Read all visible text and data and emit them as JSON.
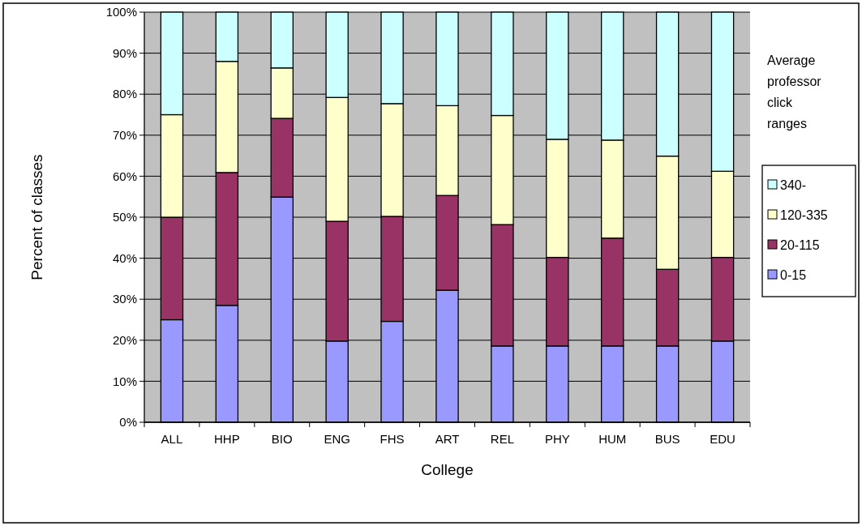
{
  "chart_data": {
    "type": "bar",
    "stacked": true,
    "xlabel": "College",
    "ylabel": "Percent of classes",
    "legend_title": "Average professor click ranges",
    "legend": "right",
    "grid": "y",
    "categories": [
      "ALL",
      "HHP",
      "BIO",
      "ENG",
      "FHS",
      "ART",
      "REL",
      "PHY",
      "HUM",
      "BUS",
      "EDU"
    ],
    "ylim": [
      0,
      100
    ],
    "yticks": [
      {
        "value": 0,
        "label": "0%"
      },
      {
        "value": 10,
        "label": "10%"
      },
      {
        "value": 20,
        "label": "20%"
      },
      {
        "value": 30,
        "label": "30%"
      },
      {
        "value": 40,
        "label": "40%"
      },
      {
        "value": 50,
        "label": "50%"
      },
      {
        "value": 60,
        "label": "60%"
      },
      {
        "value": 70,
        "label": "70%"
      },
      {
        "value": 80,
        "label": "80%"
      },
      {
        "value": 90,
        "label": "90%"
      },
      {
        "value": 100,
        "label": "100%"
      }
    ],
    "series": [
      {
        "name": "0-15",
        "color": "#9999ff",
        "values": [
          25,
          28.5,
          54.9,
          19.8,
          24.6,
          32.2,
          18.6,
          18.6,
          18.6,
          18.6,
          19.8
        ]
      },
      {
        "name": "20-115",
        "color": "#993366",
        "values": [
          25,
          32.4,
          19.2,
          29.2,
          25.6,
          23.1,
          29.6,
          21.6,
          26.3,
          18.7,
          20.4
        ]
      },
      {
        "name": "120-335",
        "color": "#ffffcc",
        "values": [
          25,
          27.1,
          12.3,
          30.2,
          27.5,
          21.9,
          26.6,
          28.8,
          23.9,
          27.6,
          21.0
        ]
      },
      {
        "name": "340-",
        "color": "#ccffff",
        "values": [
          25,
          12.0,
          13.6,
          20.8,
          22.3,
          22.8,
          25.2,
          31.0,
          31.2,
          35.1,
          38.8
        ]
      }
    ]
  }
}
